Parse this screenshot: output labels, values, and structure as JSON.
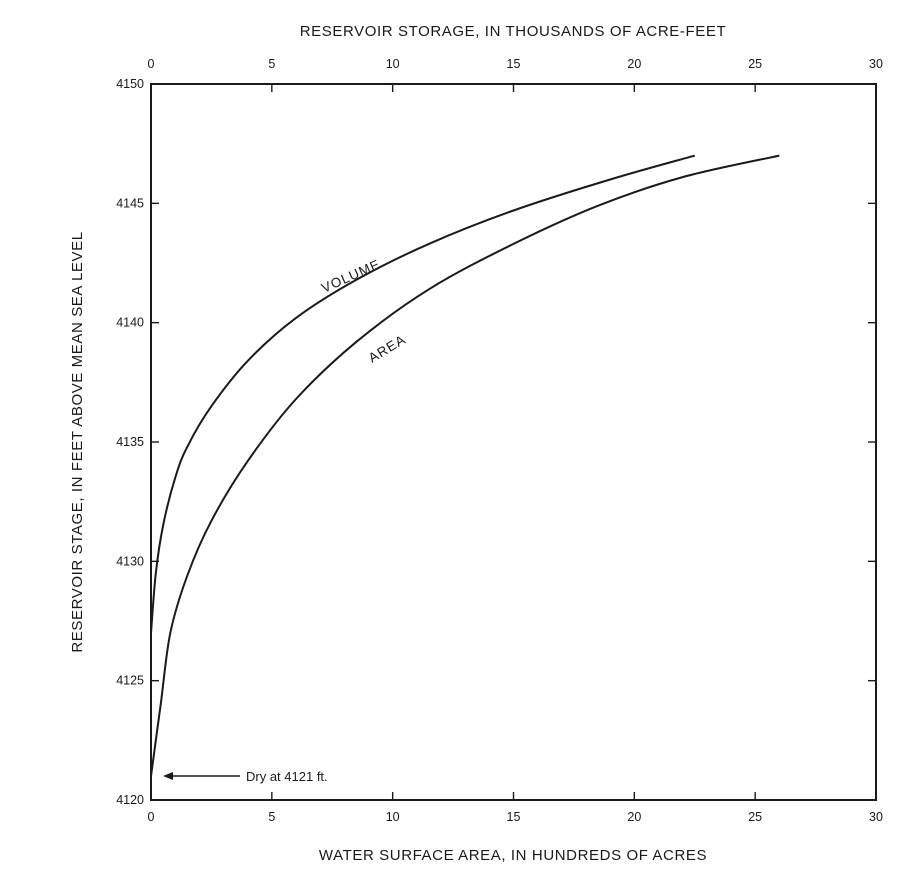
{
  "chart_data": {
    "type": "line",
    "title": "",
    "xlabel": "WATER SURFACE AREA, IN HUNDREDS OF ACRES",
    "x2label": "RESERVOIR STORAGE, IN THOUSANDS OF ACRE-FEET",
    "ylabel": "RESERVOIR STAGE, IN FEET ABOVE MEAN SEA LEVEL",
    "xlim": [
      0,
      30
    ],
    "x2lim": [
      0,
      30
    ],
    "ylim": [
      4120,
      4150
    ],
    "xticks": [
      "0",
      "5",
      "10",
      "15",
      "20",
      "25",
      "30"
    ],
    "x2ticks": [
      "0",
      "5",
      "10",
      "15",
      "20",
      "25",
      "30"
    ],
    "yticks": [
      "4120",
      "4125",
      "4130",
      "4135",
      "4140",
      "4145",
      "4150"
    ],
    "grid": false,
    "series": [
      {
        "name": "VOLUME",
        "axis": "top",
        "x": [
          0,
          0.2,
          0.5,
          1.0,
          1.5,
          2.5,
          4.0,
          6.0,
          8.5,
          11.5,
          15.0,
          19.0,
          22.5
        ],
        "y": [
          4127,
          4129.5,
          4131.5,
          4133.5,
          4134.8,
          4136.5,
          4138.4,
          4140.2,
          4141.8,
          4143.3,
          4144.7,
          4146.0,
          4147
        ]
      },
      {
        "name": "AREA",
        "axis": "bottom",
        "x": [
          0,
          0.4,
          0.8,
          1.5,
          2.5,
          4.0,
          6.0,
          8.5,
          11.5,
          15.0,
          18.5,
          22.0,
          26.0
        ],
        "y": [
          4121,
          4124,
          4127,
          4129.4,
          4131.7,
          4134.2,
          4136.8,
          4139.2,
          4141.4,
          4143.3,
          4144.9,
          4146.1,
          4147
        ]
      }
    ],
    "annotations": [
      {
        "text": "Dry at 4121 ft.",
        "x": 0.4,
        "y": 4121
      }
    ]
  }
}
